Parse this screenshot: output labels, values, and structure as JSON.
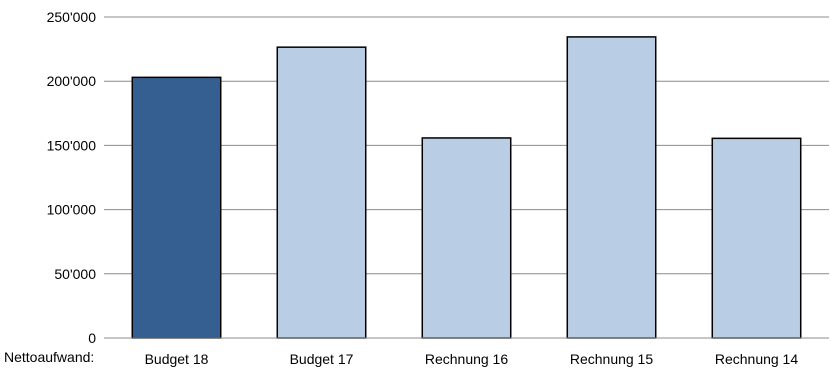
{
  "chart_data": {
    "type": "bar",
    "row_label": "Nettoaufwand:",
    "categories": [
      "Budget 18",
      "Budget 17",
      "Rechnung 16",
      "Rechnung 15",
      "Rechnung 14"
    ],
    "values": [
      203000,
      226500,
      155800,
      234500,
      155500
    ],
    "ylim": [
      0,
      250000
    ],
    "yticks": [
      0,
      50000,
      100000,
      150000,
      200000,
      250000
    ],
    "ytick_labels": [
      "0",
      "50'000",
      "100'000",
      "150'000",
      "200'000",
      "250'000"
    ],
    "grid": true,
    "legend": "none",
    "colors": {
      "highlight": "#365F91",
      "default": "#B9CDE5",
      "edge": "#000000",
      "grid": "#8C8C8C"
    },
    "highlight_index": 0
  }
}
